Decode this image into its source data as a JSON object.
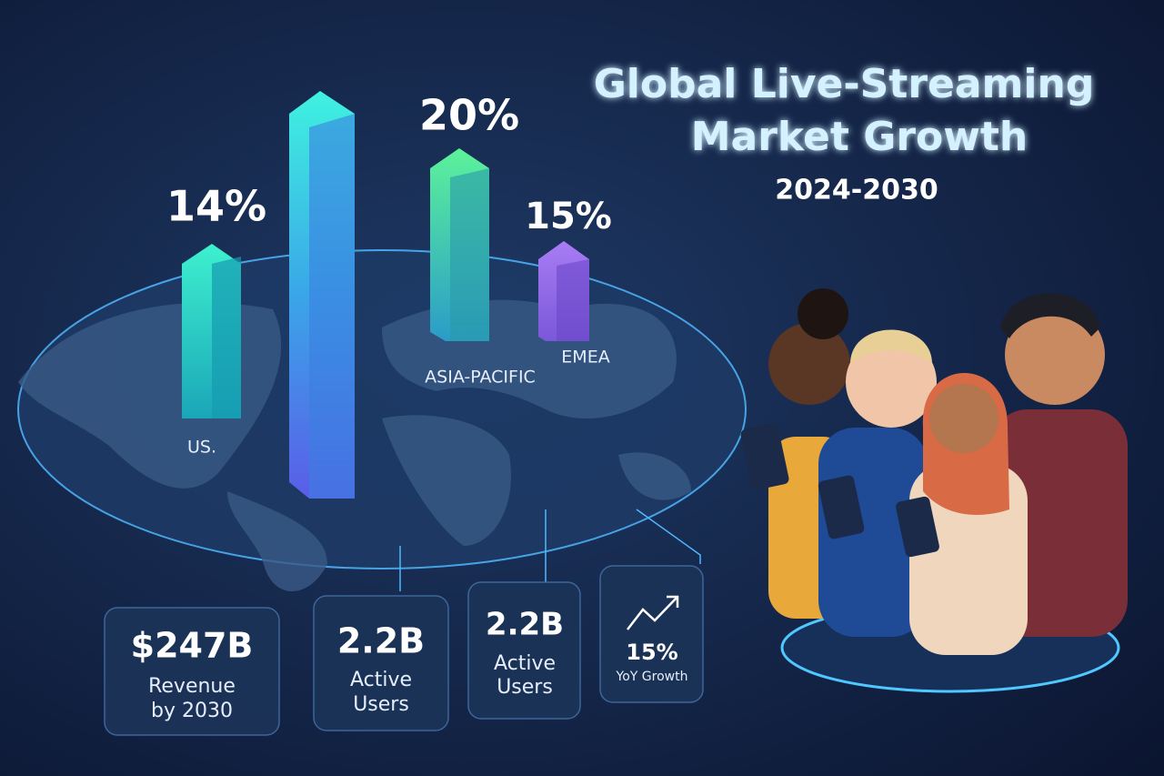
{
  "header": {
    "title_lines": [
      "Global Live-Streaming",
      "Market Growth"
    ],
    "subtitle": "2024-2030"
  },
  "bars": [
    {
      "value_label": "14%",
      "region": "US."
    },
    {
      "value_label": "20%",
      "region": "ASIA-PACIFIC"
    },
    {
      "value_label": "15%",
      "region": "EMEA"
    }
  ],
  "cards": [
    {
      "value": "$247B",
      "label_lines": [
        "Revenue",
        "by 2030"
      ]
    },
    {
      "value": "2.2B",
      "label_lines": [
        "Active",
        "Users"
      ]
    },
    {
      "value": "2.2B",
      "label_lines": [
        "Active",
        "Users"
      ]
    },
    {
      "value": "15%",
      "label_lines": [
        "YoY Growth"
      ]
    }
  ]
}
